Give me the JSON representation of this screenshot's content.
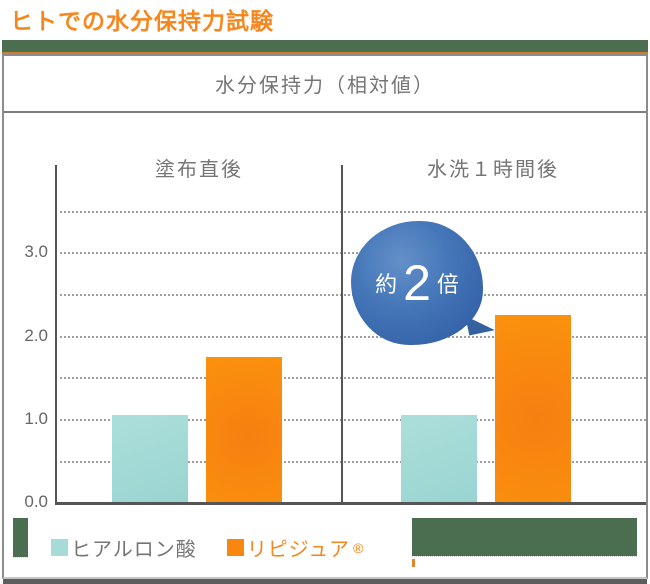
{
  "page": {
    "title": "ヒトでの水分保持力試験"
  },
  "chart": {
    "header": "水分保持力（相対値）",
    "groups": [
      "塗布直後",
      "水洗１時間後"
    ],
    "yticks": [
      "3.0",
      "2.0",
      "1.0",
      "0.0"
    ],
    "annotation": {
      "prefix": "約",
      "value": "2",
      "suffix": "倍"
    },
    "legend": [
      {
        "label": "ヒアルロン酸",
        "color": "#a6dbd7"
      },
      {
        "label": "リピジュア",
        "reg": "®",
        "color": "#f8860f"
      }
    ]
  },
  "chart_data": {
    "type": "bar",
    "title": "水分保持力（相対値）",
    "categories": [
      "塗布直後",
      "水洗１時間後"
    ],
    "series": [
      {
        "name": "ヒアルロン酸",
        "values": [
          1.05,
          1.05
        ],
        "color": "#a6dbd7"
      },
      {
        "name": "リピジュア®",
        "values": [
          1.75,
          2.25
        ],
        "color": "#f8860f"
      }
    ],
    "ylabel": "水分保持力（相対値）",
    "ylim": [
      0,
      4.0
    ],
    "ytick_step": 0.5,
    "ytick_labeled": [
      0.0,
      1.0,
      2.0,
      3.0
    ],
    "grid": "dotted-horizontal",
    "legend_position": "bottom-left",
    "annotation": "約2倍（水洗１時間後のリピジュア®はヒアルロン酸の約2倍）"
  },
  "colors": {
    "title_orange": "#f6871f",
    "bar_teal": "#a6dbd7",
    "bar_orange": "#f8860f",
    "bubble_blue": "#3f6fb3",
    "deco_green": "#4c6e50",
    "card_border": "#8c8c8c",
    "text_gray": "#757575",
    "axis_gray": "#555555"
  }
}
